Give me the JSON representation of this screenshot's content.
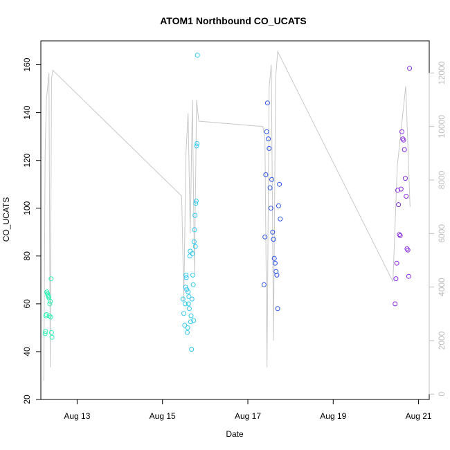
{
  "chart_data": {
    "type": "scatter",
    "title": "ATOM1 Northbound CO_UCATS",
    "xlabel": "Date",
    "ylabel": "CO_UCATS",
    "xlim": [
      12.15,
      21.25
    ],
    "ylim": [
      20,
      170
    ],
    "y2lim": [
      -200,
      13200
    ],
    "x_ticks": [
      13,
      15,
      17,
      19,
      21
    ],
    "x_tick_labels": [
      "Aug 13",
      "Aug 15",
      "Aug 17",
      "Aug 19",
      "Aug 21"
    ],
    "y_ticks": [
      20,
      40,
      60,
      80,
      100,
      120,
      140,
      160
    ],
    "y2_ticks": [
      0,
      2000,
      4000,
      6000,
      8000,
      10000,
      12000
    ],
    "grid": false,
    "point_color_by_date": {
      "Aug 12": "#33f0b5",
      "Aug 15": "#33c8f0",
      "Aug 17": "#2a50e8",
      "Aug 20": "#8a2be2"
    },
    "line_color": "#c8c8c8",
    "series": [
      {
        "x": [
          12.25,
          12.26,
          12.27,
          12.28,
          12.29,
          12.3,
          12.31,
          12.32,
          12.33,
          12.34,
          12.35,
          12.36,
          12.37,
          12.38,
          12.39,
          12.4,
          12.41
        ],
        "y": [
          47.5,
          48.5,
          55.0,
          55.5,
          65.0,
          64.5,
          64.0,
          63.5,
          63.0,
          62.5,
          55.0,
          60.0,
          61.0,
          54.5,
          70.5,
          48.0,
          46.0
        ]
      },
      {
        "x": [
          15.48,
          15.5,
          15.52,
          15.53,
          15.54,
          15.55,
          15.56,
          15.57,
          15.58,
          15.59,
          15.6,
          15.61,
          15.62,
          15.63,
          15.64,
          15.65,
          15.66,
          15.67,
          15.68,
          15.69,
          15.7,
          15.71,
          15.72,
          15.73,
          15.74,
          15.75,
          15.76,
          15.77,
          15.78,
          15.79,
          15.8,
          15.81,
          15.82
        ],
        "y": [
          62.0,
          56.0,
          51.0,
          60.0,
          67.0,
          72.0,
          71.0,
          66.0,
          48.0,
          50.0,
          65.0,
          60.0,
          63.0,
          58.0,
          80.0,
          82.0,
          52.5,
          55.0,
          41.0,
          62.0,
          81.0,
          72.0,
          68.0,
          53.0,
          86.0,
          91.0,
          97.0,
          84.0,
          102.0,
          103.0,
          126.0,
          127.0,
          164.0
        ]
      },
      {
        "x": [
          17.38,
          17.4,
          17.42,
          17.44,
          17.46,
          17.48,
          17.5,
          17.52,
          17.54,
          17.56,
          17.58,
          17.6,
          17.62,
          17.64,
          17.66,
          17.68,
          17.7,
          17.72,
          17.74,
          17.76
        ],
        "y": [
          68.0,
          88.0,
          114.0,
          132.0,
          144.0,
          129.0,
          125.0,
          108.5,
          100.0,
          112.0,
          90.0,
          87.0,
          79.0,
          77.0,
          73.5,
          72.0,
          58.0,
          101.0,
          110.0,
          95.5
        ]
      },
      {
        "x": [
          20.45,
          20.47,
          20.49,
          20.51,
          20.53,
          20.55,
          20.57,
          20.59,
          20.61,
          20.63,
          20.65,
          20.67,
          20.69,
          20.71,
          20.73,
          20.75,
          20.77,
          20.79
        ],
        "y": [
          60.0,
          70.5,
          77.0,
          107.5,
          101.5,
          89.0,
          88.5,
          108.0,
          132.0,
          129.0,
          128.5,
          124.5,
          112.5,
          105.0,
          83.0,
          82.5,
          71.5,
          158.5
        ]
      }
    ],
    "right_axis_line": {
      "x": [
        12.22,
        12.25,
        12.28,
        12.31,
        12.34,
        12.37,
        12.4,
        12.43,
        15.45,
        15.5,
        15.55,
        15.6,
        15.65,
        15.7,
        15.75,
        15.8,
        15.85,
        17.35,
        17.4,
        17.45,
        17.5,
        17.55,
        17.6,
        17.65,
        17.7,
        20.4,
        20.5,
        20.6,
        20.7,
        20.8
      ],
      "y": [
        500,
        9000,
        11000,
        11500,
        12000,
        1000,
        11800,
        12100,
        7400,
        3500,
        9000,
        10500,
        6000,
        11000,
        4500,
        11000,
        10200,
        10000,
        9500,
        1000,
        11500,
        12300,
        2000,
        11800,
        12800,
        4200,
        8500,
        10000,
        11500,
        7000
      ]
    }
  }
}
